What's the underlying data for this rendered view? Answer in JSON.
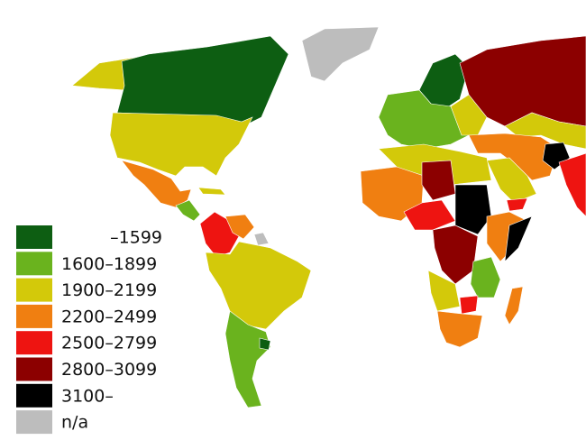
{
  "legend": {
    "items": [
      {
        "label": "–1599",
        "color": "#0d5e12"
      },
      {
        "label": "1600–1899",
        "color": "#6ab31e"
      },
      {
        "label": "1900–2199",
        "color": "#d3c90a"
      },
      {
        "label": "2200–2499",
        "color": "#f07f11"
      },
      {
        "label": "2500–2799",
        "color": "#ee1411"
      },
      {
        "label": "2800–3099",
        "color": "#8c0000"
      },
      {
        "label": "3100–",
        "color": "#000000"
      },
      {
        "label": "n/a",
        "color": "#bdbdbd"
      }
    ]
  }
}
